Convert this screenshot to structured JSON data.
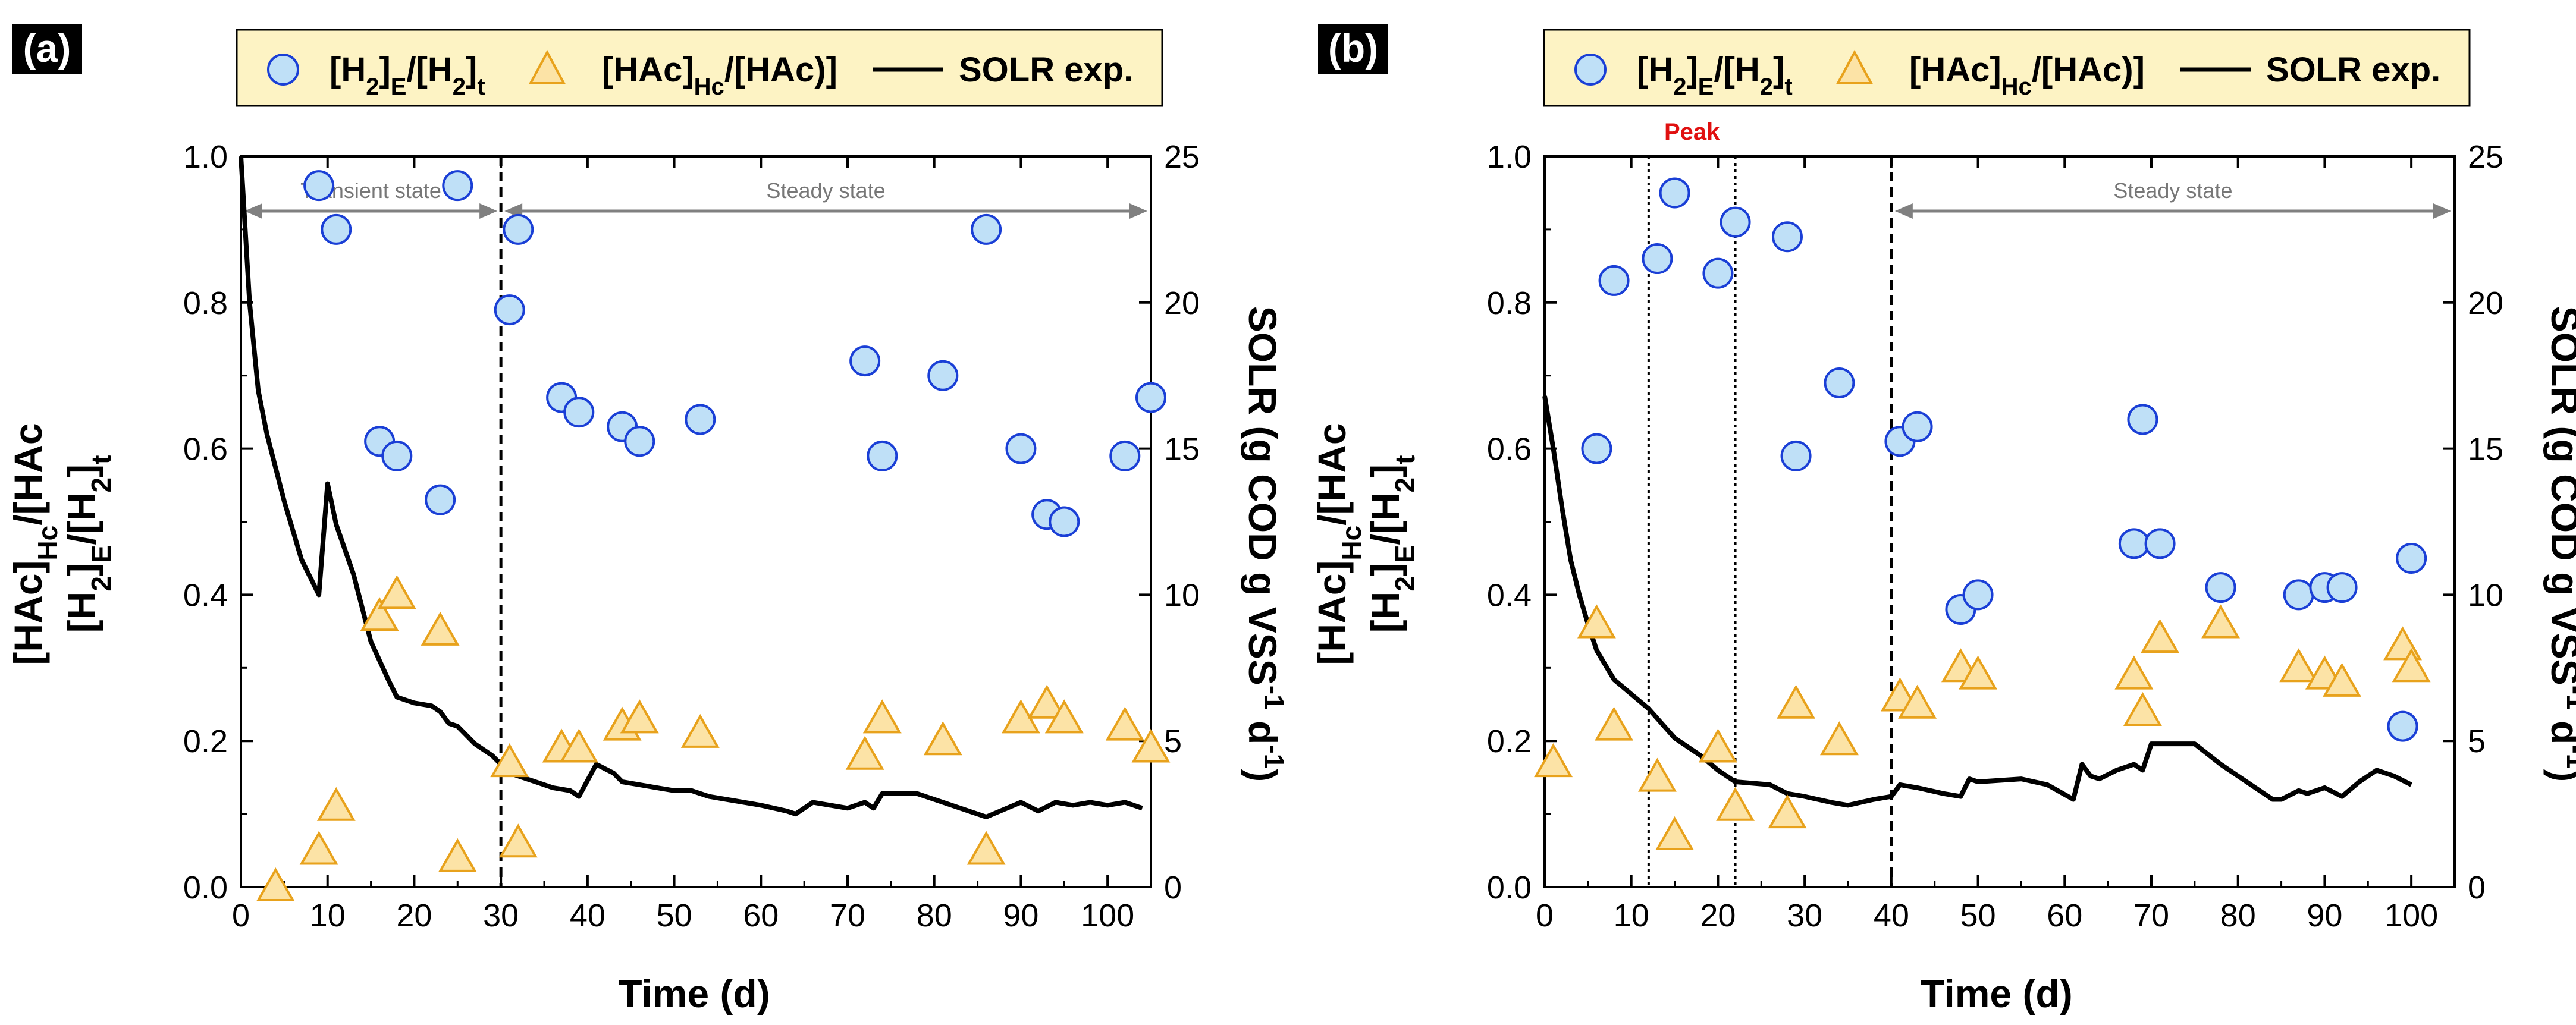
{
  "colors": {
    "circle_fill": "#bfe0f7",
    "circle_stroke": "#1a3fd6",
    "triangle_fill": "#fce3a6",
    "triangle_stroke": "#e8a21c",
    "line": "#000000",
    "legend_bg": "#fdf3c4",
    "annotation": "#808080",
    "peak": "#e01010"
  },
  "legend": {
    "h2_main": "[H",
    "h2_sub1": "2",
    "h2_mid": "]",
    "h2_sub2": "E",
    "h2_mid2": "/[H",
    "h2_sub3": "2",
    "h2_mid3": "]",
    "h2_sub4": "t",
    "hac_main": "[HAc]",
    "hac_sub": "Hc",
    "hac_tail": "/[HAc)]",
    "solr": "SOLR exp."
  },
  "axes": {
    "xlabel": "Time (d)",
    "y1_line1_main": "[HAc]",
    "y1_line1_sub": "Hc",
    "y1_line1_tail": "/[HAc",
    "y1_line2_a": "[H",
    "y1_line2_sub1": "2",
    "y1_line2_b": "]",
    "y1_line2_sub2": "E",
    "y1_line2_c": "/[H",
    "y1_line2_sub3": "2",
    "y1_line2_d": "]",
    "y1_line2_sub4": "t",
    "y2_main": "SOLR (g COD g VSS",
    "y2_sup1": "-1",
    "y2_mid": " d",
    "y2_sup2": "-1",
    "y2_tail": ")"
  },
  "chart_data": [
    {
      "type": "scatter",
      "panel": "(a)",
      "xlabel": "Time (d)",
      "xlim": [
        0,
        105
      ],
      "xticks": [
        0,
        10,
        20,
        30,
        40,
        50,
        60,
        70,
        80,
        90,
        100
      ],
      "ylim": [
        0,
        1.0
      ],
      "yticks": [
        "0.0",
        "0.2",
        "0.4",
        "0.6",
        "0.8",
        "1.0"
      ],
      "y2lim": [
        0,
        25
      ],
      "y2ticks": [
        "0",
        "5",
        "10",
        "15",
        "20",
        "25"
      ],
      "series": [
        {
          "name": "[H2]E/[H2]t",
          "marker": "circle",
          "x": [
            9,
            11,
            16,
            18,
            23,
            25,
            31,
            32,
            37,
            39,
            44,
            46,
            53,
            72,
            74,
            81,
            86,
            90,
            93,
            95,
            102,
            105
          ],
          "y": [
            0.96,
            0.9,
            0.61,
            0.59,
            0.53,
            0.96,
            0.79,
            0.9,
            0.67,
            0.65,
            0.63,
            0.61,
            0.64,
            0.72,
            0.59,
            0.7,
            0.9,
            0.6,
            0.51,
            0.5,
            0.59,
            0.67
          ]
        },
        {
          "name": "[HAc]Hc/[HAc)]",
          "marker": "triangle",
          "x": [
            4,
            9,
            11,
            16,
            18,
            23,
            25,
            31,
            32,
            37,
            39,
            44,
            46,
            53,
            72,
            74,
            81,
            86,
            90,
            93,
            95,
            102,
            105
          ],
          "y": [
            0.0,
            0.05,
            0.11,
            0.37,
            0.4,
            0.35,
            0.04,
            0.17,
            0.06,
            0.19,
            0.19,
            0.22,
            0.23,
            0.21,
            0.18,
            0.23,
            0.2,
            0.05,
            0.23,
            0.25,
            0.23,
            0.22,
            0.19
          ]
        },
        {
          "name": "SOLR exp.",
          "marker": "line",
          "axis": "right",
          "x": [
            0,
            1,
            2,
            3,
            5,
            7,
            9,
            10,
            11,
            13,
            15,
            17,
            18,
            20,
            22,
            23,
            24,
            25,
            27,
            29,
            30,
            31,
            32,
            34,
            36,
            38,
            39,
            41,
            43,
            44,
            46,
            48,
            50,
            52,
            54,
            56,
            60,
            63,
            64,
            66,
            68,
            70,
            72,
            73,
            74,
            76,
            78,
            80,
            84,
            86,
            90,
            92,
            94,
            96,
            98,
            100,
            102,
            104
          ],
          "y": [
            25,
            20,
            17,
            15.5,
            13.2,
            11.2,
            10.0,
            13.8,
            12.4,
            10.7,
            8.4,
            7.1,
            6.5,
            6.3,
            6.2,
            6.0,
            5.6,
            5.5,
            4.9,
            4.5,
            4.2,
            3.9,
            3.8,
            3.6,
            3.4,
            3.3,
            3.1,
            4.2,
            3.9,
            3.6,
            3.5,
            3.4,
            3.3,
            3.3,
            3.1,
            3.0,
            2.8,
            2.6,
            2.5,
            2.9,
            2.8,
            2.7,
            2.9,
            2.7,
            3.2,
            3.2,
            3.2,
            3.0,
            2.6,
            2.4,
            2.9,
            2.6,
            2.9,
            2.8,
            2.9,
            2.8,
            2.9,
            2.7
          ]
        }
      ],
      "annotations": {
        "transient": "Transient state",
        "steady": "Steady state",
        "transient_range": [
          0,
          30
        ],
        "steady_range": [
          30,
          105
        ],
        "vlines_dashed": [
          30
        ],
        "vlines_dotted": []
      }
    },
    {
      "type": "scatter",
      "panel": "(b)",
      "xlabel": "Time (d)",
      "xlim": [
        0,
        105
      ],
      "xticks": [
        0,
        10,
        20,
        30,
        40,
        50,
        60,
        70,
        80,
        90,
        100
      ],
      "ylim": [
        0,
        1.0
      ],
      "yticks": [
        "0.0",
        "0.2",
        "0.4",
        "0.6",
        "0.8",
        "1.0"
      ],
      "y2lim": [
        0,
        25
      ],
      "y2ticks": [
        "0",
        "5",
        "10",
        "15",
        "20",
        "25"
      ],
      "series": [
        {
          "name": "[H2]E/[H2]t",
          "marker": "circle",
          "x": [
            6,
            8,
            13,
            15,
            20,
            22,
            28,
            29,
            34,
            41,
            43,
            48,
            50,
            68,
            69,
            71,
            78,
            87,
            90,
            92,
            99,
            100
          ],
          "y": [
            0.6,
            0.83,
            0.86,
            0.95,
            0.84,
            0.91,
            0.89,
            0.59,
            0.69,
            0.61,
            0.63,
            0.38,
            0.4,
            0.47,
            0.64,
            0.47,
            0.41,
            0.4,
            0.41,
            0.41,
            0.22,
            0.45
          ]
        },
        {
          "name": "[HAc]Hc/[HAc)]",
          "marker": "triangle",
          "x": [
            1,
            6,
            8,
            13,
            15,
            20,
            22,
            28,
            29,
            34,
            41,
            43,
            48,
            50,
            68,
            69,
            71,
            78,
            87,
            90,
            92,
            99,
            100
          ],
          "y": [
            0.17,
            0.36,
            0.22,
            0.15,
            0.07,
            0.19,
            0.11,
            0.1,
            0.25,
            0.2,
            0.26,
            0.25,
            0.3,
            0.29,
            0.29,
            0.24,
            0.34,
            0.36,
            0.3,
            0.29,
            0.28,
            0.33,
            0.3
          ]
        },
        {
          "name": "SOLR exp.",
          "marker": "line",
          "axis": "right",
          "x": [
            0,
            1,
            2,
            3,
            4,
            5,
            6,
            8,
            10,
            12,
            15,
            18,
            20,
            22,
            26,
            28,
            30,
            33,
            35,
            38,
            40,
            41,
            43,
            46,
            48,
            49,
            50,
            55,
            58,
            61,
            62,
            63,
            64,
            66,
            68,
            69,
            70,
            72,
            75,
            78,
            82,
            84,
            85,
            87,
            88,
            90,
            92,
            94,
            96,
            98,
            100
          ],
          "y": [
            16.8,
            15.0,
            13.0,
            11.2,
            10.0,
            9.0,
            8.1,
            7.1,
            6.6,
            6.1,
            5.1,
            4.5,
            4.0,
            3.6,
            3.5,
            3.2,
            3.1,
            2.9,
            2.8,
            3.0,
            3.1,
            3.5,
            3.4,
            3.2,
            3.1,
            3.7,
            3.6,
            3.7,
            3.5,
            3.0,
            4.2,
            3.8,
            3.7,
            4.0,
            4.2,
            4.0,
            4.9,
            4.9,
            4.9,
            4.2,
            3.4,
            3.0,
            3.0,
            3.3,
            3.2,
            3.4,
            3.1,
            3.6,
            4.0,
            3.8,
            3.5
          ]
        }
      ],
      "annotations": {
        "peak": "Peak",
        "steady": "Steady state",
        "steady_range": [
          40,
          105
        ],
        "vlines_dashed": [
          40
        ],
        "vlines_dotted": [
          12,
          22
        ]
      }
    }
  ]
}
